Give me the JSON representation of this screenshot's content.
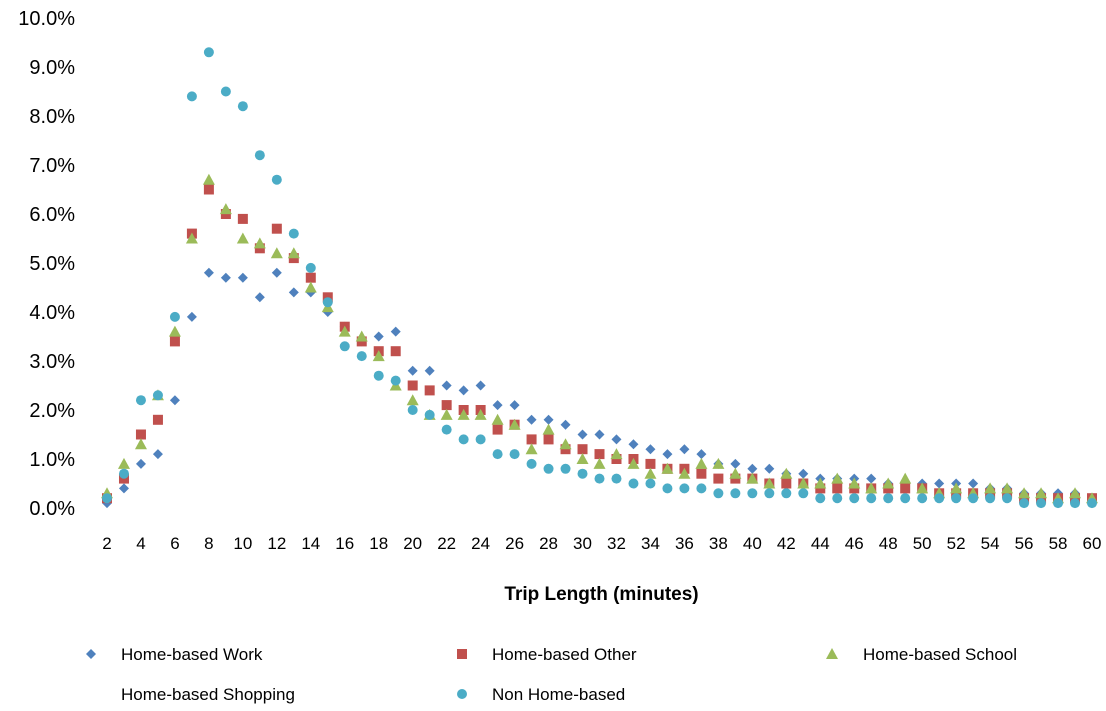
{
  "chart_data": {
    "type": "scatter",
    "title": "",
    "xlabel": "Trip Length (minutes)",
    "ylabel": "",
    "x": [
      2,
      3,
      4,
      5,
      6,
      7,
      8,
      9,
      10,
      11,
      12,
      13,
      14,
      15,
      16,
      17,
      18,
      19,
      20,
      21,
      22,
      23,
      24,
      25,
      26,
      27,
      28,
      29,
      30,
      31,
      32,
      33,
      34,
      35,
      36,
      37,
      38,
      39,
      40,
      41,
      42,
      43,
      44,
      45,
      46,
      47,
      48,
      49,
      50,
      51,
      52,
      53,
      54,
      55,
      56,
      57,
      58,
      59,
      60
    ],
    "xlim": [
      2,
      60
    ],
    "x_tick_labels": [
      "2",
      "4",
      "6",
      "8",
      "10",
      "12",
      "14",
      "16",
      "18",
      "20",
      "22",
      "24",
      "26",
      "28",
      "30",
      "32",
      "34",
      "36",
      "38",
      "40",
      "42",
      "44",
      "46",
      "48",
      "50",
      "52",
      "54",
      "56",
      "58",
      "60"
    ],
    "ylim": [
      0,
      0.1
    ],
    "y_tick_labels": [
      "0.0%",
      "1.0%",
      "2.0%",
      "3.0%",
      "4.0%",
      "5.0%",
      "6.0%",
      "7.0%",
      "8.0%",
      "9.0%",
      "10.0%"
    ],
    "grid": false,
    "legend_position": "bottom",
    "series": [
      {
        "name": "Home-based Work",
        "marker": "diamond",
        "color": "#4f81bd",
        "values": [
          0.001,
          0.004,
          0.009,
          0.011,
          0.022,
          0.039,
          0.048,
          0.047,
          0.047,
          0.043,
          0.048,
          0.044,
          0.044,
          0.04,
          0.037,
          0.034,
          0.035,
          0.036,
          0.028,
          0.028,
          0.025,
          0.024,
          0.025,
          0.021,
          0.021,
          0.018,
          0.018,
          0.017,
          0.015,
          0.015,
          0.014,
          0.013,
          0.012,
          0.011,
          0.012,
          0.011,
          0.009,
          0.009,
          0.008,
          0.008,
          0.007,
          0.007,
          0.006,
          0.006,
          0.006,
          0.006,
          0.005,
          0.005,
          0.005,
          0.005,
          0.005,
          0.005,
          0.004,
          0.004,
          0.003,
          0.003,
          0.003,
          0.003,
          0.002
        ]
      },
      {
        "name": "Home-based Other",
        "marker": "square",
        "color": "#c0504d",
        "values": [
          0.002,
          0.006,
          0.015,
          0.018,
          0.034,
          0.056,
          0.065,
          0.06,
          0.059,
          0.053,
          0.057,
          0.051,
          0.047,
          0.043,
          0.037,
          0.034,
          0.032,
          0.032,
          0.025,
          0.024,
          0.021,
          0.02,
          0.02,
          0.016,
          0.017,
          0.014,
          0.014,
          0.012,
          0.012,
          0.011,
          0.01,
          0.01,
          0.009,
          0.008,
          0.008,
          0.007,
          0.006,
          0.006,
          0.006,
          0.005,
          0.005,
          0.005,
          0.004,
          0.004,
          0.004,
          0.004,
          0.004,
          0.004,
          0.004,
          0.003,
          0.003,
          0.003,
          0.003,
          0.003,
          0.002,
          0.002,
          0.002,
          0.002,
          0.002
        ]
      },
      {
        "name": "Home-based School",
        "marker": "triangle",
        "color": "#9bbb59",
        "values": [
          0.003,
          0.009,
          0.013,
          0.023,
          0.036,
          0.055,
          0.067,
          0.061,
          0.055,
          0.054,
          0.052,
          0.052,
          0.045,
          0.041,
          0.036,
          0.035,
          0.031,
          0.025,
          0.022,
          0.019,
          0.019,
          0.019,
          0.019,
          0.018,
          0.017,
          0.012,
          0.016,
          0.013,
          0.01,
          0.009,
          0.011,
          0.009,
          0.007,
          0.008,
          0.007,
          0.009,
          0.009,
          0.007,
          0.006,
          0.005,
          0.007,
          0.005,
          0.005,
          0.006,
          0.005,
          0.004,
          0.005,
          0.006,
          0.004,
          0.003,
          0.004,
          0.003,
          0.004,
          0.004,
          0.003,
          0.003,
          0.002,
          0.003,
          0.002
        ]
      },
      {
        "name": "Home-based Shopping",
        "marker": "none",
        "color": "#8064a2",
        "values": []
      },
      {
        "name": "Non Home-based",
        "marker": "circle",
        "color": "#4bacc6",
        "values": [
          0.002,
          0.007,
          0.022,
          0.023,
          0.039,
          0.084,
          0.093,
          0.085,
          0.082,
          0.072,
          0.067,
          0.056,
          0.049,
          0.042,
          0.033,
          0.031,
          0.027,
          0.026,
          0.02,
          0.019,
          0.016,
          0.014,
          0.014,
          0.011,
          0.011,
          0.009,
          0.008,
          0.008,
          0.007,
          0.006,
          0.006,
          0.005,
          0.005,
          0.004,
          0.004,
          0.004,
          0.003,
          0.003,
          0.003,
          0.003,
          0.003,
          0.003,
          0.002,
          0.002,
          0.002,
          0.002,
          0.002,
          0.002,
          0.002,
          0.002,
          0.002,
          0.002,
          0.002,
          0.002,
          0.001,
          0.001,
          0.001,
          0.001,
          0.001
        ]
      }
    ]
  }
}
